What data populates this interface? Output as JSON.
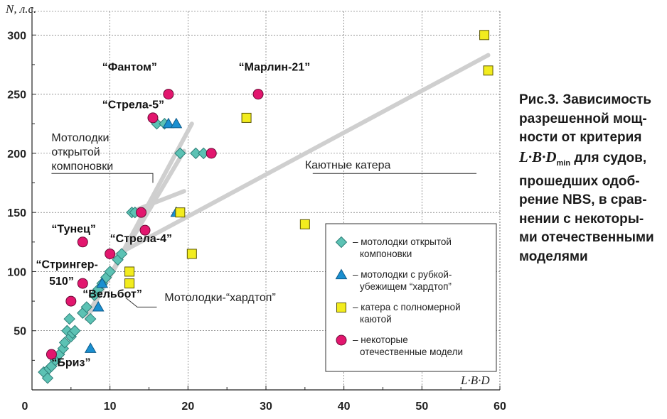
{
  "chart_data": {
    "type": "scatter",
    "ylabel": "N, л.с.",
    "xlabel": "L·B·D",
    "xlim": [
      0,
      60
    ],
    "ylim": [
      0,
      320
    ],
    "xticks": [
      "0",
      "10",
      "20",
      "30",
      "40",
      "50",
      "60"
    ],
    "yticks": [
      "50",
      "100",
      "150",
      "200",
      "250",
      "300"
    ],
    "xtick_values": [
      0,
      10,
      20,
      30,
      40,
      50,
      60
    ],
    "ytick_values": [
      50,
      100,
      150,
      200,
      250,
      300
    ],
    "grid": true,
    "series": [
      {
        "name": "– мотолодки открытой компоновки",
        "marker": "diamond",
        "color": "#5cc2b4",
        "points": [
          [
            1.5,
            15
          ],
          [
            2,
            10
          ],
          [
            2.2,
            18
          ],
          [
            2.5,
            20
          ],
          [
            3,
            25
          ],
          [
            3.5,
            30
          ],
          [
            4,
            35
          ],
          [
            4.2,
            40
          ],
          [
            4.5,
            50
          ],
          [
            4.8,
            60
          ],
          [
            5,
            45
          ],
          [
            5.2,
            48
          ],
          [
            5.5,
            50
          ],
          [
            6.5,
            65
          ],
          [
            7,
            70
          ],
          [
            7.5,
            60
          ],
          [
            8,
            80
          ],
          [
            8.5,
            85
          ],
          [
            9,
            90
          ],
          [
            9.5,
            95
          ],
          [
            10,
            100
          ],
          [
            11,
            110
          ],
          [
            11.5,
            115
          ],
          [
            12.8,
            150
          ],
          [
            13.2,
            150
          ],
          [
            16,
            225
          ],
          [
            17,
            225
          ],
          [
            19,
            200
          ],
          [
            21,
            200
          ],
          [
            22,
            200
          ]
        ]
      },
      {
        "name": "– мотолодки с рубкой-убежищем “хардтоп”",
        "marker": "triangle",
        "color": "#1a8fd0",
        "points": [
          [
            7.5,
            35
          ],
          [
            8.5,
            70
          ],
          [
            9,
            90
          ],
          [
            17.5,
            225
          ],
          [
            18.5,
            225
          ],
          [
            18.5,
            150
          ]
        ]
      },
      {
        "name": "– катера с полномерной каютой",
        "marker": "square",
        "color": "#f2ec1e",
        "points": [
          [
            12.5,
            90
          ],
          [
            12.5,
            100
          ],
          [
            19,
            150
          ],
          [
            20.5,
            115
          ],
          [
            27.5,
            230
          ],
          [
            35,
            140
          ],
          [
            58,
            300
          ],
          [
            58.5,
            270
          ]
        ]
      },
      {
        "name": "– некоторые отечественные модели",
        "marker": "circle",
        "color": "#e2166e",
        "points": [
          [
            2.5,
            30
          ],
          [
            5,
            75
          ],
          [
            6.5,
            90
          ],
          [
            6.5,
            125
          ],
          [
            10,
            115
          ],
          [
            14,
            150
          ],
          [
            14.5,
            135
          ],
          [
            15.5,
            230
          ],
          [
            17.5,
            250
          ],
          [
            23,
            200
          ],
          [
            29,
            250
          ]
        ]
      }
    ],
    "annotations": [
      {
        "text": "“Фантом”",
        "x": 9,
        "y": 270
      },
      {
        "text": "“Марлин-21”",
        "x": 26.5,
        "y": 270
      },
      {
        "text": "“Стрела-5”",
        "x": 9,
        "y": 238
      },
      {
        "text": "“Тунец”",
        "x": 2.5,
        "y": 133
      },
      {
        "text": "“Стрела-4”",
        "x": 10,
        "y": 125
      },
      {
        "text": "“Стрингер-",
        "x": 0.5,
        "y": 103
      },
      {
        "text": "510”",
        "x": 2.2,
        "y": 89
      },
      {
        "text": "“Вельбот”",
        "x": 6.5,
        "y": 78
      },
      {
        "text": "“Бриз”",
        "x": 2.5,
        "y": 20
      }
    ],
    "group_labels": [
      {
        "lines": [
          "Мотолодки",
          "открытой",
          "компоновки"
        ],
        "x": 2.5,
        "y": 210
      },
      {
        "lines": [
          "Каютные катера"
        ],
        "x": 35,
        "y": 187
      },
      {
        "lines": [
          "Мотолодки-“хардтоп”"
        ],
        "x": 17,
        "y": 75
      }
    ]
  },
  "caption": {
    "line1": "Рис.3. Зависимость",
    "line2": "разрешенной мощ-",
    "line3": "ности от критерия",
    "criterion": "L·B·D",
    "criterion_sub": "min",
    "line4_rest": " для судов,",
    "line5": "прошедших одоб-",
    "line6": "рение NBS, в срав-",
    "line7": "нении с некоторы-",
    "line8": "ми отечественными",
    "line9": "моделями"
  }
}
